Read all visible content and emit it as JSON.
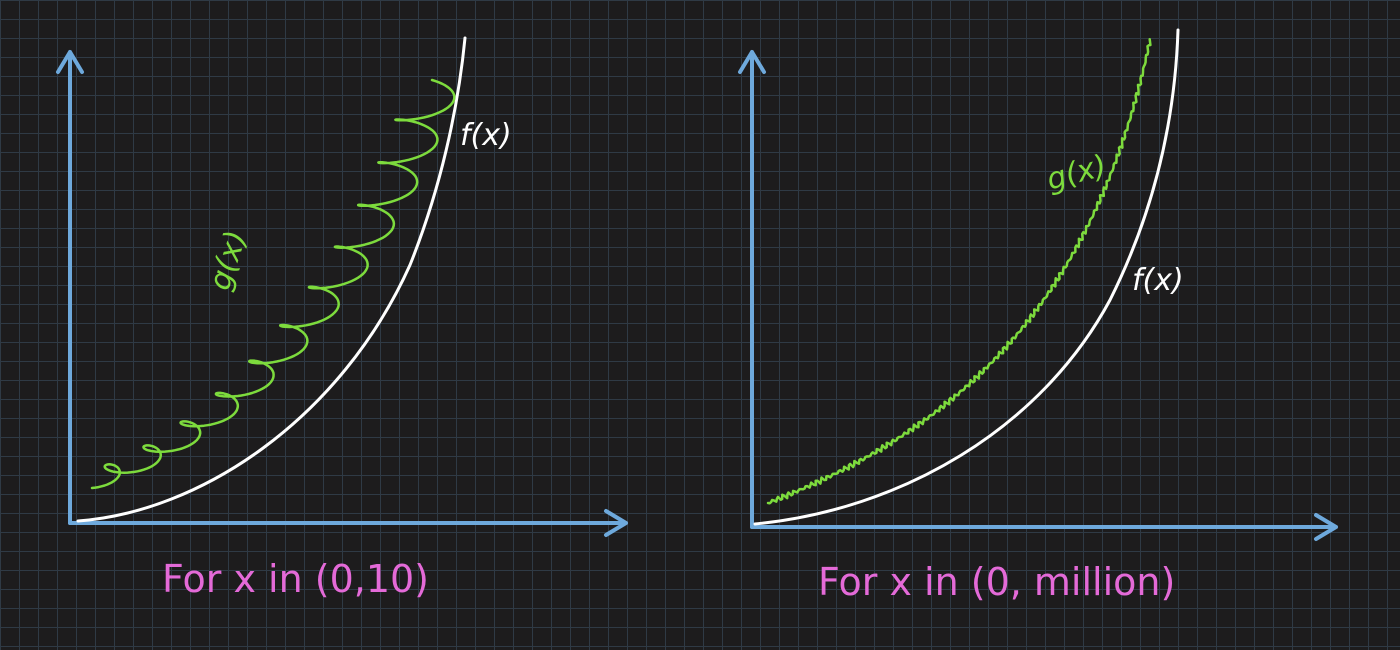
{
  "left_panel": {
    "caption": "For x in (0,10)",
    "f_label": "f(x)",
    "g_label": "g(x)"
  },
  "right_panel": {
    "caption": "For x in (0, million)",
    "f_label": "f(x)",
    "g_label": "g(x)"
  },
  "colors": {
    "background": "#1d1c1d",
    "grid": "#2f3a45",
    "axis": "#6ea9dc",
    "f_curve": "#ffffff",
    "g_curve": "#7ddb3d",
    "caption": "#e46ad8"
  }
}
